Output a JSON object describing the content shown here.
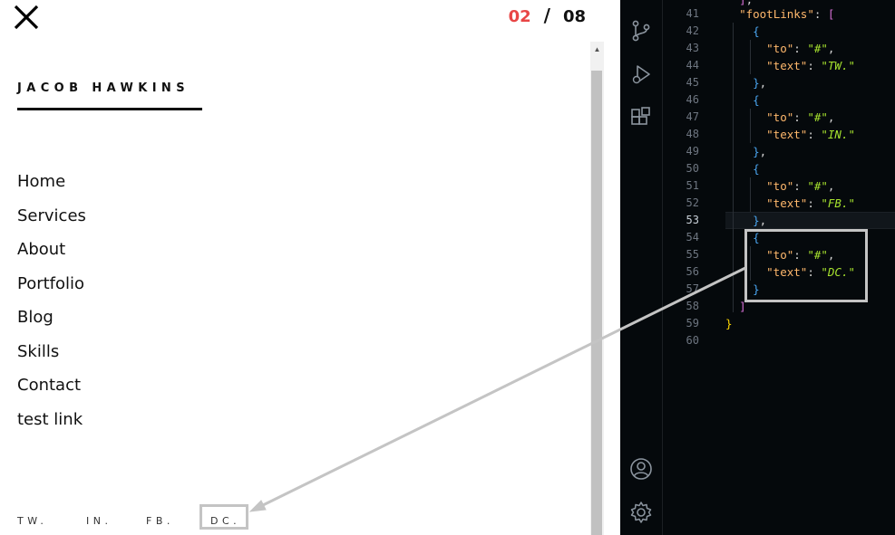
{
  "preview": {
    "close_icon": "close-x-icon",
    "counter": {
      "current": "02",
      "separator": "/",
      "total": "08"
    },
    "brand_name": "JACOB HAWKINS",
    "nav_items": [
      "Home",
      "Services",
      "About",
      "Portfolio",
      "Blog",
      "Skills",
      "Contact",
      "test link"
    ],
    "foot_links": [
      "TW.",
      "IN.",
      "FB.",
      "DC."
    ]
  },
  "editor": {
    "activity_icons": [
      "source-control-icon",
      "run-debug-icon",
      "extensions-icon",
      "account-icon",
      "settings-icon"
    ],
    "line_numbers": [
      "41",
      "42",
      "43",
      "44",
      "45",
      "46",
      "47",
      "48",
      "49",
      "50",
      "51",
      "52",
      "53",
      "54",
      "55",
      "56",
      "57",
      "58",
      "59",
      "60"
    ],
    "active_line": "53",
    "code": {
      "foot_key": "\"footLinks\"",
      "to_key": "\"to\"",
      "text_key": "\"text\"",
      "hash_value": "\"#\"",
      "tw_value": "\"TW.\"",
      "in_value": "\"IN.\"",
      "fb_value": "\"FB.\"",
      "dc_value": "\"DC.\""
    }
  },
  "colors": {
    "counter_accent": "#e84545",
    "editor_bg": "#05090c",
    "key": "#ffb86c",
    "string": "#a6e22e",
    "highlight_box": "#c4c4c4"
  }
}
